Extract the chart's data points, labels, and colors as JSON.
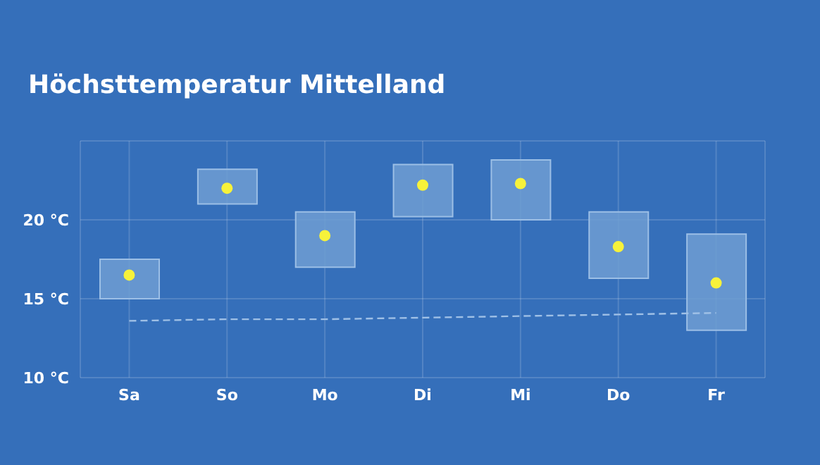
{
  "chart_data": {
    "type": "bar",
    "title": "Höchsttemperatur Mittelland",
    "categories": [
      "Sa",
      "So",
      "Mo",
      "Di",
      "Mi",
      "Do",
      "Fr"
    ],
    "series": [
      {
        "color": "#6f9ed2",
        "base": [
          15.0,
          21.0,
          17.0,
          20.2,
          20.0,
          16.3,
          13.0
        ],
        "values": [
          2.5,
          2.2,
          3.5,
          3.3,
          3.8,
          4.2,
          6.1
        ]
      },
      {
        "type": "scatter",
        "color": "#f7f23a",
        "values": [
          16.5,
          22.0,
          19.0,
          22.2,
          22.3,
          18.3,
          16.0
        ]
      },
      {
        "type": "line",
        "color": "#9fc0e6",
        "line_style": "dashed",
        "marker": "none",
        "values": [
          13.6,
          13.7,
          13.7,
          13.8,
          13.9,
          14.0,
          14.1
        ]
      }
    ],
    "ylim": [
      10,
      25
    ],
    "yticks": [
      {
        "value": 10,
        "label": "10 °C"
      },
      {
        "value": 15,
        "label": "15 °C"
      },
      {
        "value": 20,
        "label": "20 °C"
      },
      {
        "value": 25,
        "label": null
      }
    ],
    "grid": true,
    "legend": false
  }
}
